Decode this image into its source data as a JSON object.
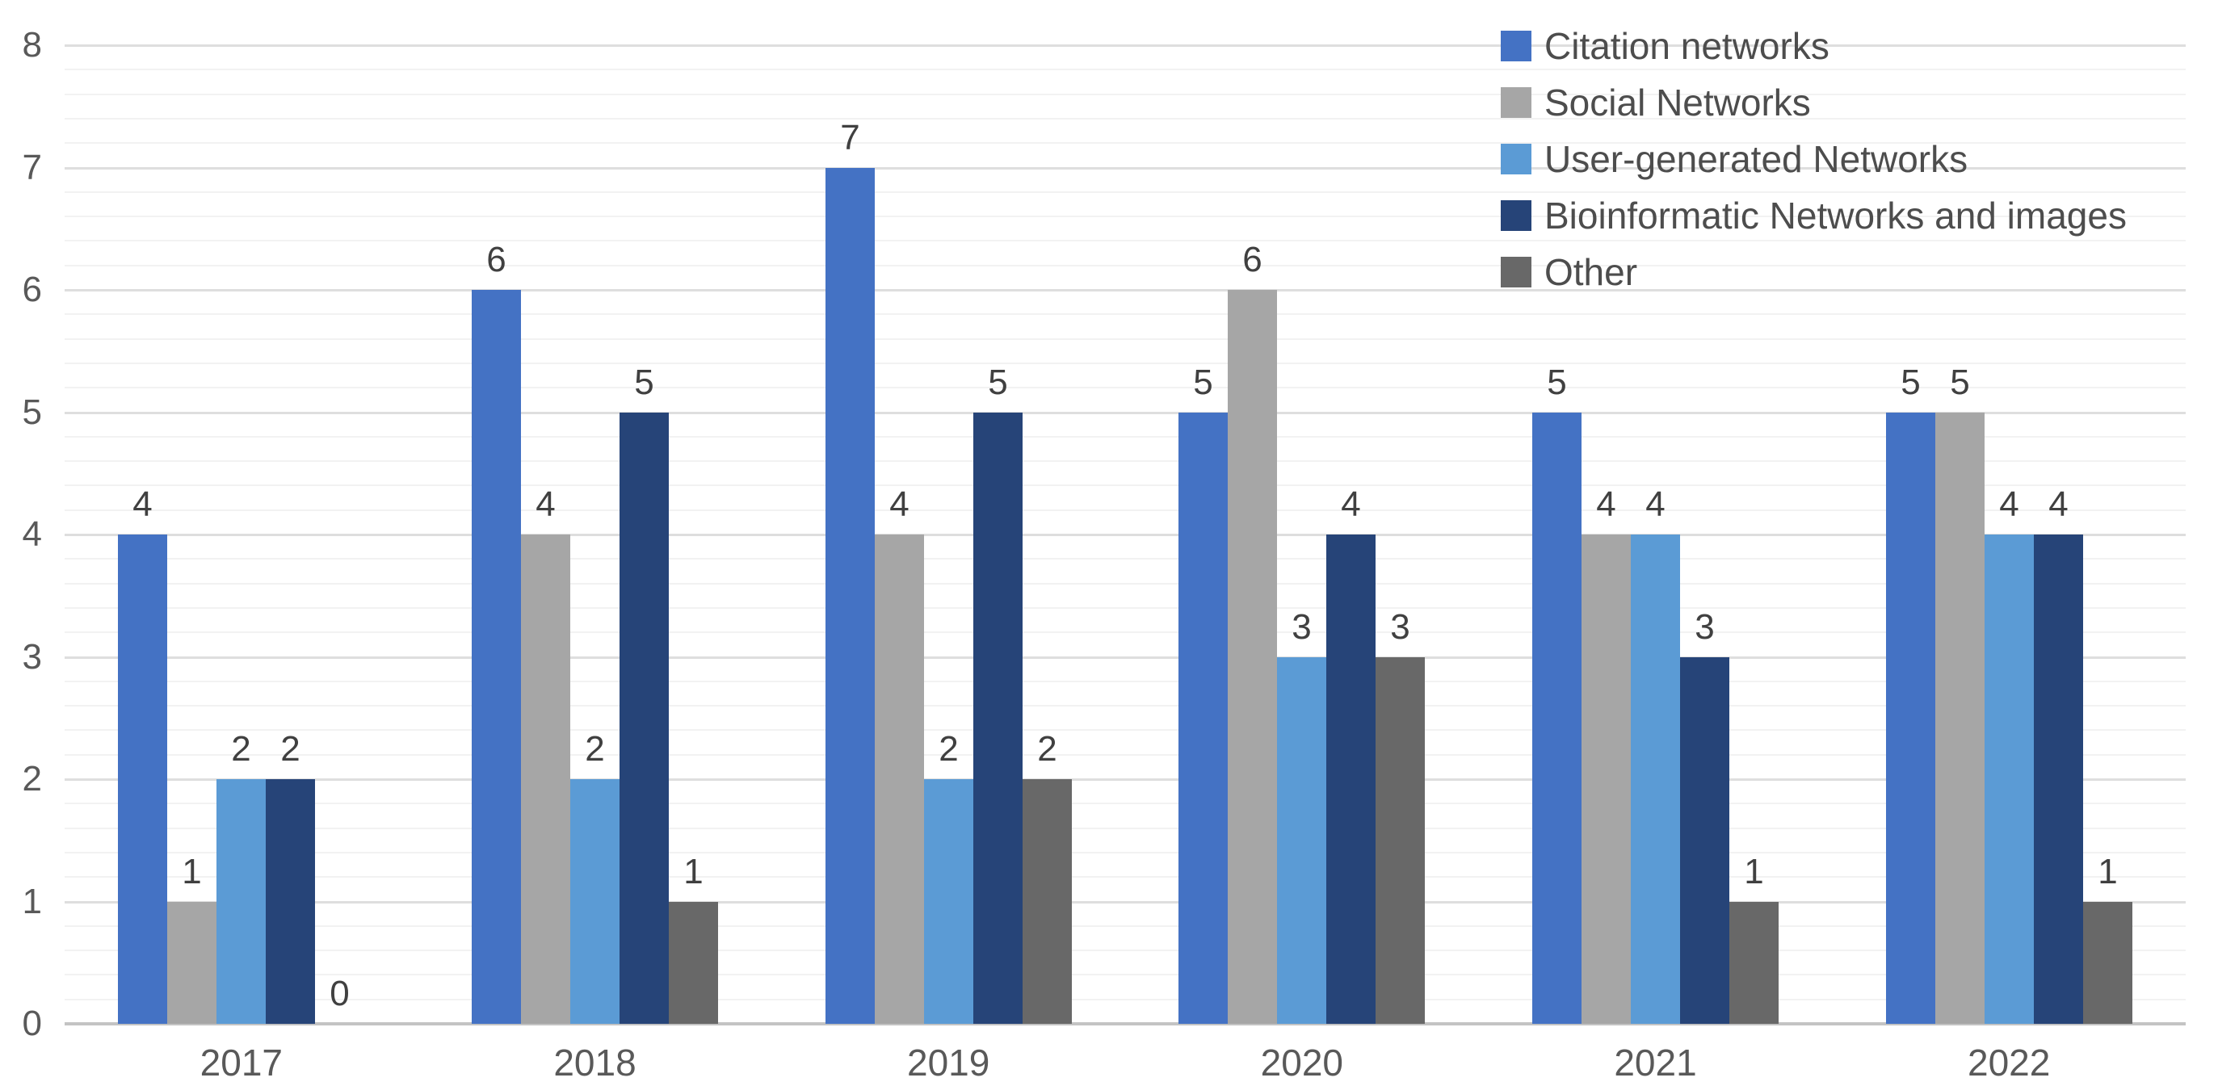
{
  "chart_data": {
    "type": "bar",
    "title": "",
    "xlabel": "",
    "ylabel": "",
    "categories": [
      "2017",
      "2018",
      "2019",
      "2020",
      "2021",
      "2022"
    ],
    "series": [
      {
        "name": "Citation networks",
        "color": "#4472C4",
        "values": [
          4,
          6,
          7,
          5,
          5,
          5
        ]
      },
      {
        "name": "Social Networks",
        "color": "#A6A6A6",
        "values": [
          1,
          4,
          4,
          6,
          4,
          5
        ]
      },
      {
        "name": "User-generated Networks",
        "color": "#5B9BD5",
        "values": [
          2,
          2,
          2,
          3,
          4,
          4
        ]
      },
      {
        "name": "Bioinformatic Networks and images",
        "color": "#264478",
        "values": [
          2,
          5,
          5,
          4,
          3,
          4
        ]
      },
      {
        "name": "Other",
        "color": "#686868",
        "values": [
          0,
          1,
          2,
          3,
          1,
          1
        ]
      }
    ],
    "y_ticks": [
      "0",
      "1",
      "2",
      "3",
      "4",
      "5",
      "6",
      "7",
      "8"
    ],
    "ylim": [
      0,
      8
    ],
    "minor_gridline_step": 0.2,
    "major_gridline_step": 1,
    "grid": true,
    "data_labels": true,
    "legend_position": "top-right",
    "colors": {
      "axis_text": "#595959",
      "data_label_text": "#404040",
      "legend_text": "#4d4d4d",
      "major_gridline": "#dedede",
      "minor_gridline": "#f2f2f2",
      "axis_line": "#c4c4c4",
      "background": "#ffffff"
    }
  }
}
